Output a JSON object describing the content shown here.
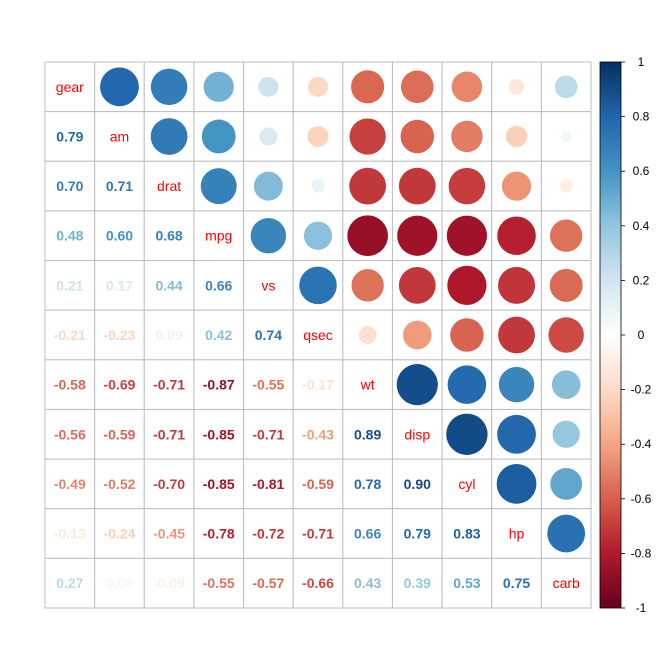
{
  "chart_data": {
    "type": "heatmap",
    "style": "corrplot-mixed",
    "upper_method": "circle",
    "lower_method": "number",
    "diagonal": "variable-names",
    "variables": [
      "gear",
      "am",
      "drat",
      "mpg",
      "vs",
      "qsec",
      "wt",
      "disp",
      "cyl",
      "hp",
      "carb"
    ],
    "matrix": [
      [
        1.0,
        0.79,
        0.7,
        0.48,
        0.21,
        -0.21,
        -0.58,
        -0.56,
        -0.49,
        -0.13,
        0.27
      ],
      [
        0.79,
        1.0,
        0.71,
        0.6,
        0.17,
        -0.23,
        -0.69,
        -0.59,
        -0.52,
        -0.24,
        0.06
      ],
      [
        0.7,
        0.71,
        1.0,
        0.68,
        0.44,
        0.09,
        -0.71,
        -0.71,
        -0.7,
        -0.45,
        -0.09
      ],
      [
        0.48,
        0.6,
        0.68,
        1.0,
        0.66,
        0.42,
        -0.87,
        -0.85,
        -0.85,
        -0.78,
        -0.55
      ],
      [
        0.21,
        0.17,
        0.44,
        0.66,
        1.0,
        0.74,
        -0.55,
        -0.71,
        -0.81,
        -0.72,
        -0.57
      ],
      [
        -0.21,
        -0.23,
        0.09,
        0.42,
        0.74,
        1.0,
        -0.17,
        -0.43,
        -0.59,
        -0.71,
        -0.66
      ],
      [
        -0.58,
        -0.69,
        -0.71,
        -0.87,
        -0.55,
        -0.17,
        1.0,
        0.89,
        0.78,
        0.66,
        0.43
      ],
      [
        -0.56,
        -0.59,
        -0.71,
        -0.85,
        -0.71,
        -0.43,
        0.89,
        1.0,
        0.9,
        0.79,
        0.39
      ],
      [
        -0.49,
        -0.52,
        -0.7,
        -0.85,
        -0.81,
        -0.59,
        0.78,
        0.9,
        1.0,
        0.83,
        0.53
      ],
      [
        -0.13,
        -0.24,
        -0.45,
        -0.78,
        -0.72,
        -0.71,
        0.66,
        0.79,
        0.83,
        1.0,
        0.75
      ],
      [
        0.27,
        0.06,
        -0.09,
        -0.55,
        -0.57,
        -0.66,
        0.43,
        0.39,
        0.53,
        0.75,
        1.0
      ]
    ],
    "colorbar": {
      "range": [
        -1,
        1
      ],
      "ticks": [
        1,
        0.8,
        0.6,
        0.4,
        0.2,
        0,
        -0.2,
        -0.4,
        -0.6,
        -0.8,
        -1
      ],
      "tick_labels": [
        "1",
        "0.8",
        "0.6",
        "0.4",
        "0.2",
        "0",
        "-0.2",
        "-0.4",
        "-0.6",
        "-0.8",
        "-1"
      ],
      "placement": "right"
    },
    "palette": [
      "#67001F",
      "#B2182B",
      "#D6604D",
      "#F4A582",
      "#FDDBC7",
      "#FFFFFF",
      "#D1E5F0",
      "#92C5DE",
      "#4393C3",
      "#2166AC",
      "#053061"
    ],
    "diagonal_label_color": "#FF0000",
    "grid_color": "#BEBEBE"
  }
}
